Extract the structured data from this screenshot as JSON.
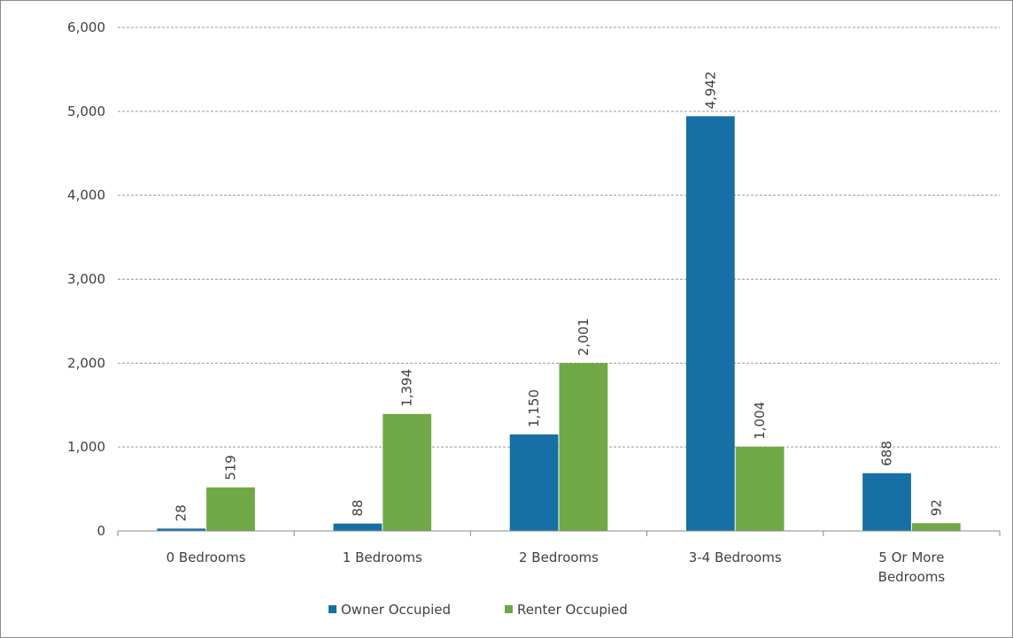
{
  "chart_data": {
    "type": "bar",
    "title": "",
    "xlabel": "",
    "ylabel": "",
    "categories": [
      [
        "0 Bedrooms"
      ],
      [
        "1 Bedrooms"
      ],
      [
        "2 Bedrooms"
      ],
      [
        "3-4 Bedrooms"
      ],
      [
        "5 Or More",
        "Bedrooms"
      ]
    ],
    "series": [
      {
        "name": "Owner Occupied",
        "color": "#1670a6",
        "values": [
          28,
          88,
          1150,
          4942,
          688
        ],
        "labels": [
          "28",
          "88",
          "1,150",
          "4,942",
          "688"
        ]
      },
      {
        "name": "Renter Occupied",
        "color": "#70a845",
        "values": [
          519,
          1394,
          2001,
          1004,
          92
        ],
        "labels": [
          "519",
          "1,394",
          "2,001",
          "1,004",
          "92"
        ]
      }
    ],
    "ylim": [
      0,
      6000
    ],
    "yticks": [
      0,
      1000,
      2000,
      3000,
      4000,
      5000,
      6000
    ],
    "ytick_labels": [
      "0",
      "1,000",
      "2,000",
      "3,000",
      "4,000",
      "5,000",
      "6,000"
    ],
    "grid": true,
    "legend_position": "bottom"
  }
}
